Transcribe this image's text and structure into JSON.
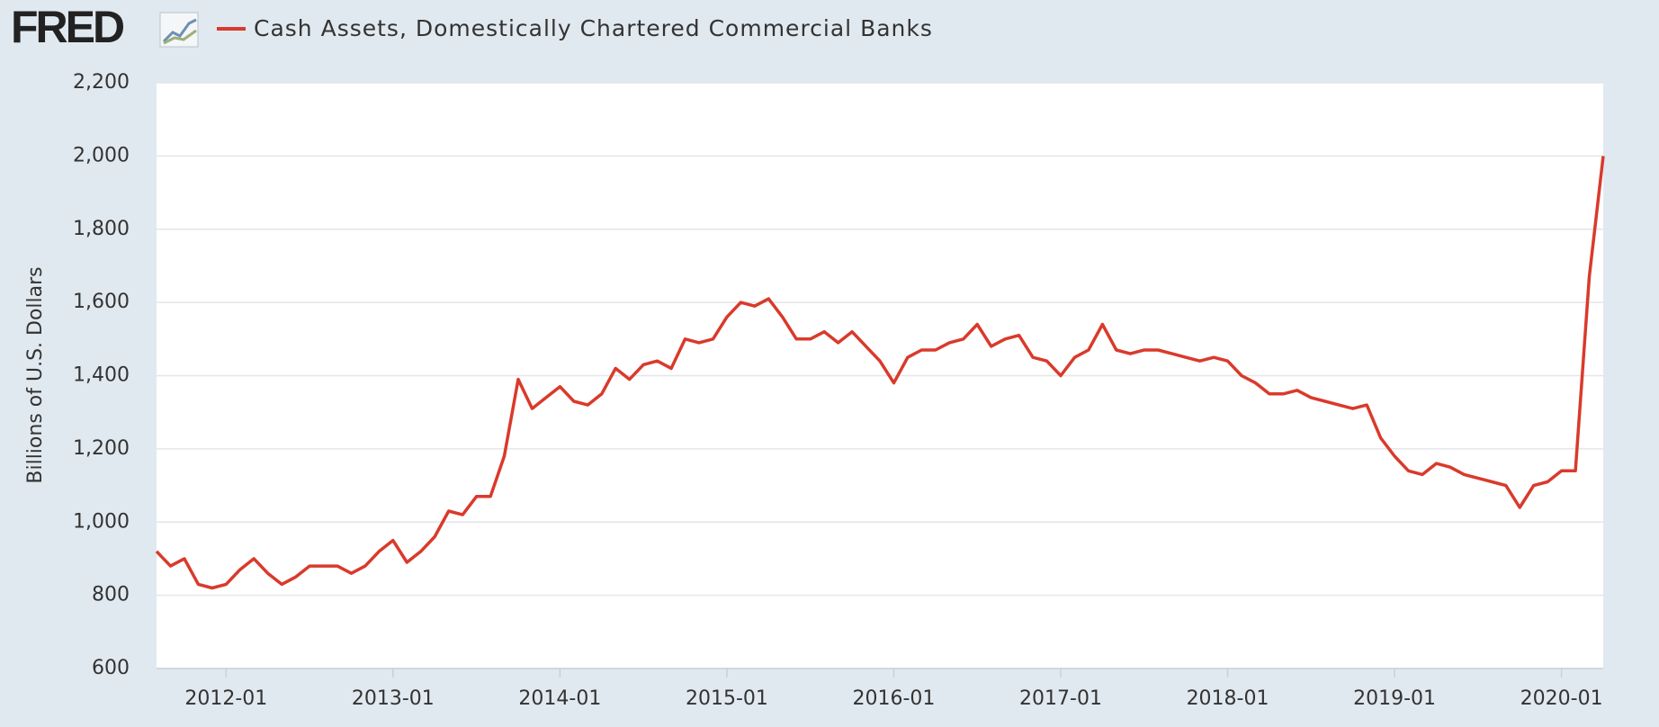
{
  "logo": "FRED",
  "chart_data": {
    "type": "line",
    "title": "Cash Assets, Domestically Chartered Commercial Banks",
    "y_label": "Billions of U.S. Dollars",
    "x": [
      "2011-08",
      "2011-09",
      "2011-10",
      "2011-11",
      "2011-12",
      "2012-01",
      "2012-02",
      "2012-03",
      "2012-04",
      "2012-05",
      "2012-06",
      "2012-07",
      "2012-08",
      "2012-09",
      "2012-10",
      "2012-11",
      "2012-12",
      "2013-01",
      "2013-02",
      "2013-03",
      "2013-04",
      "2013-05",
      "2013-06",
      "2013-07",
      "2013-08",
      "2013-09",
      "2013-10",
      "2013-11",
      "2013-12",
      "2014-01",
      "2014-02",
      "2014-03",
      "2014-04",
      "2014-05",
      "2014-06",
      "2014-07",
      "2014-08",
      "2014-09",
      "2014-10",
      "2014-11",
      "2014-12",
      "2015-01",
      "2015-02",
      "2015-03",
      "2015-04",
      "2015-05",
      "2015-06",
      "2015-07",
      "2015-08",
      "2015-09",
      "2015-10",
      "2015-11",
      "2015-12",
      "2016-01",
      "2016-02",
      "2016-03",
      "2016-04",
      "2016-05",
      "2016-06",
      "2016-07",
      "2016-08",
      "2016-09",
      "2016-10",
      "2016-11",
      "2016-12",
      "2017-01",
      "2017-02",
      "2017-03",
      "2017-04",
      "2017-05",
      "2017-06",
      "2017-07",
      "2017-08",
      "2017-09",
      "2017-10",
      "2017-11",
      "2017-12",
      "2018-01",
      "2018-02",
      "2018-03",
      "2018-04",
      "2018-05",
      "2018-06",
      "2018-07",
      "2018-08",
      "2018-09",
      "2018-10",
      "2018-11",
      "2018-12",
      "2019-01",
      "2019-02",
      "2019-03",
      "2019-04",
      "2019-05",
      "2019-06",
      "2019-07",
      "2019-08",
      "2019-09",
      "2019-10",
      "2019-11",
      "2019-12",
      "2020-01",
      "2020-02",
      "2020-03",
      "2020-04"
    ],
    "series": [
      {
        "name": "Cash Assets, Domestically Chartered Commercial Banks",
        "color": "#d93a2b",
        "values": [
          920,
          880,
          900,
          830,
          820,
          830,
          870,
          900,
          860,
          830,
          850,
          880,
          880,
          880,
          860,
          880,
          920,
          950,
          890,
          920,
          960,
          1030,
          1020,
          1070,
          1070,
          1180,
          1390,
          1310,
          1340,
          1370,
          1330,
          1320,
          1350,
          1420,
          1390,
          1430,
          1440,
          1420,
          1500,
          1490,
          1500,
          1560,
          1600,
          1590,
          1610,
          1560,
          1500,
          1500,
          1520,
          1490,
          1520,
          1480,
          1440,
          1380,
          1450,
          1470,
          1470,
          1490,
          1500,
          1540,
          1480,
          1500,
          1510,
          1450,
          1440,
          1400,
          1450,
          1470,
          1540,
          1470,
          1460,
          1470,
          1470,
          1460,
          1450,
          1440,
          1450,
          1440,
          1400,
          1380,
          1350,
          1350,
          1360,
          1340,
          1330,
          1320,
          1310,
          1320,
          1230,
          1180,
          1140,
          1130,
          1160,
          1150,
          1130,
          1120,
          1110,
          1100,
          1040,
          1100,
          1110,
          1140,
          1140,
          1670,
          2000
        ]
      }
    ],
    "xlim": [
      "2011-08",
      "2020-04"
    ],
    "xticks": [
      "2012-01",
      "2013-01",
      "2014-01",
      "2015-01",
      "2016-01",
      "2017-01",
      "2018-01",
      "2019-01",
      "2020-01"
    ],
    "ylim": [
      600,
      2200
    ],
    "yticks": [
      600,
      800,
      {
        "value": 1000,
        "label": "1,000"
      },
      {
        "value": 1200,
        "label": "1,200"
      },
      {
        "value": 1400,
        "label": "1,400"
      },
      {
        "value": 1600,
        "label": "1,600"
      },
      {
        "value": 1800,
        "label": "1,800"
      },
      {
        "value": 2000,
        "label": "2,000"
      },
      {
        "value": 2200,
        "label": "2,200"
      }
    ],
    "grid": true
  }
}
